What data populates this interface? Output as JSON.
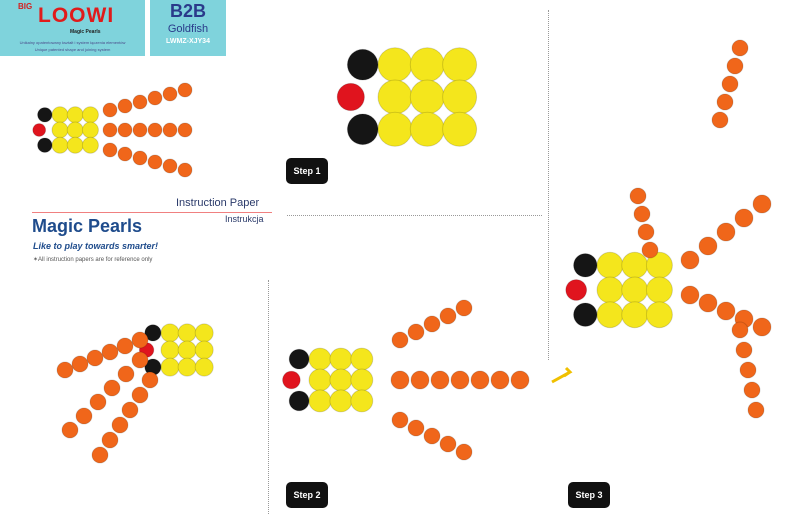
{
  "logo": {
    "big": "BIG",
    "brand": "LOOWI",
    "sub": "Magic Pearls",
    "tagline_pl": "Unikalny opatentowany kształt i system łączenia elementów",
    "tagline_en": "Unique patented shape and joining system"
  },
  "product": {
    "code": "B2B",
    "name": "Goldfish",
    "sku": "LWMZ-XJY34"
  },
  "title": {
    "instruction_paper": "Instruction Paper",
    "instrukcja": "Instrukcja",
    "magic_pearls": "Magic Pearls",
    "slogan": "Like to play towards smarter!",
    "note": "✶All instruction papers are for reference only"
  },
  "steps": [
    "Step 1",
    "Step 2",
    "Step 3"
  ],
  "colors": {
    "background": "#7fd3dc",
    "yellow": "#f4e61c",
    "orange": "#f0661a",
    "black": "#151515",
    "red": "#e0141e",
    "blue": "#1f4c8c"
  }
}
